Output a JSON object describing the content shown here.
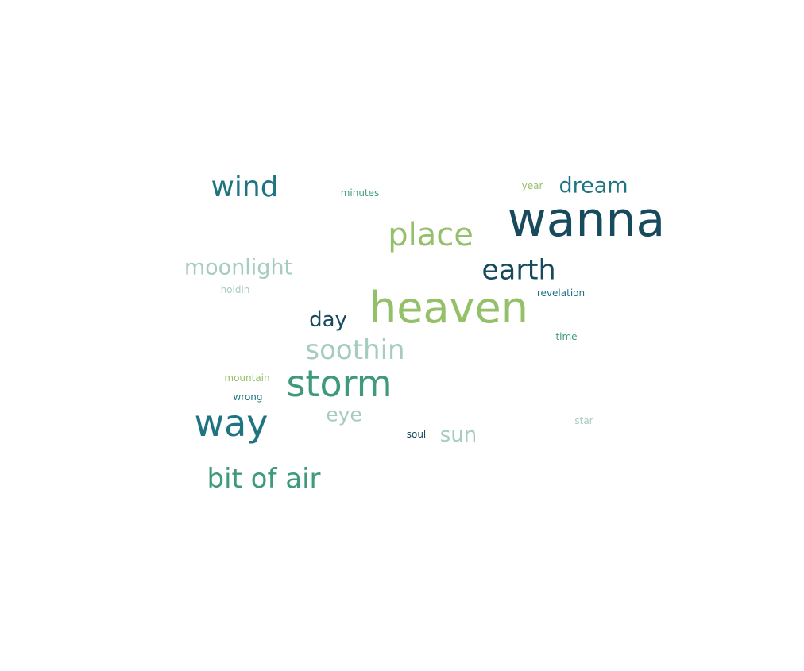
{
  "palette": {
    "dark": "#174a5c",
    "teal": "#1f7482",
    "green": "#3e9a7a",
    "lime": "#95c06a",
    "mint": "#a6ccc0"
  },
  "words": [
    {
      "text": "wanna",
      "color": "dark",
      "weight": 1.0
    },
    {
      "text": "heaven",
      "color": "lime",
      "weight": 0.95
    },
    {
      "text": "storm",
      "color": "green",
      "weight": 0.85
    },
    {
      "text": "way",
      "color": "teal",
      "weight": 0.85
    },
    {
      "text": "place",
      "color": "lime",
      "weight": 0.72
    },
    {
      "text": "wind",
      "color": "teal",
      "weight": 0.7
    },
    {
      "text": "earth",
      "color": "dark",
      "weight": 0.68
    },
    {
      "text": "soothin",
      "color": "mint",
      "weight": 0.66
    },
    {
      "text": "bit of air",
      "color": "green",
      "weight": 0.64
    },
    {
      "text": "moonlight",
      "color": "mint",
      "weight": 0.56
    },
    {
      "text": "dream",
      "color": "teal",
      "weight": 0.52
    },
    {
      "text": "day",
      "color": "dark",
      "weight": 0.5
    },
    {
      "text": "sun",
      "color": "mint",
      "weight": 0.48
    },
    {
      "text": "eye",
      "color": "mint",
      "weight": 0.46
    },
    {
      "text": "minutes",
      "color": "green",
      "weight": 0.2
    },
    {
      "text": "year",
      "color": "lime",
      "weight": 0.2
    },
    {
      "text": "holdin",
      "color": "mint",
      "weight": 0.2
    },
    {
      "text": "revelation",
      "color": "teal",
      "weight": 0.2
    },
    {
      "text": "time",
      "color": "green",
      "weight": 0.2
    },
    {
      "text": "mountain",
      "color": "lime",
      "weight": 0.2
    },
    {
      "text": "wrong",
      "color": "teal",
      "weight": 0.2
    },
    {
      "text": "soul",
      "color": "dark",
      "weight": 0.2
    },
    {
      "text": "star",
      "color": "mint",
      "weight": 0.2
    }
  ]
}
